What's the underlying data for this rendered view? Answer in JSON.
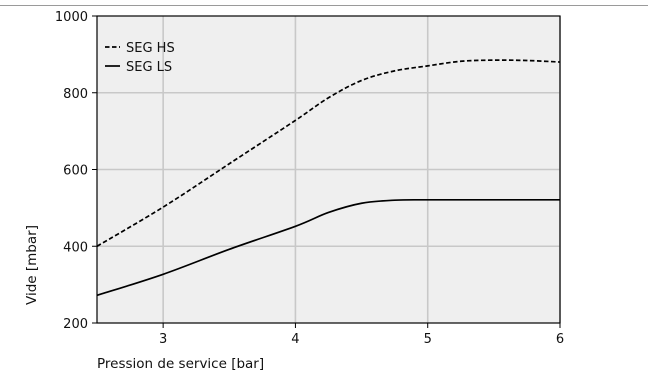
{
  "chart_data": {
    "type": "line",
    "title": "",
    "xlabel": "Pression de service [bar]",
    "ylabel": "Vide [mbar]",
    "xlim": [
      2.5,
      6.0
    ],
    "ylim": [
      200,
      1000
    ],
    "xticks": [
      3,
      4,
      5,
      6
    ],
    "yticks": [
      200,
      400,
      600,
      800,
      1000
    ],
    "grid": true,
    "background": "#efefef",
    "grid_color": "#c8c8c8",
    "legend_position": "top-left",
    "series": [
      {
        "name": "SEG HS",
        "line_style": "dashed",
        "color": "#000000",
        "x": [
          2.5,
          3.0,
          3.5,
          4.0,
          4.25,
          4.5,
          4.75,
          5.0,
          5.25,
          5.5,
          5.75,
          6.0
        ],
        "y": [
          400,
          502,
          615,
          728,
          787,
          832,
          857,
          870,
          882,
          885,
          884,
          880
        ]
      },
      {
        "name": "SEG LS",
        "line_style": "solid",
        "color": "#000000",
        "x": [
          2.5,
          3.0,
          3.5,
          4.0,
          4.25,
          4.5,
          4.75,
          5.0,
          5.5,
          6.0
        ],
        "y": [
          272,
          327,
          392,
          452,
          488,
          512,
          520,
          521,
          521,
          521
        ]
      }
    ]
  }
}
